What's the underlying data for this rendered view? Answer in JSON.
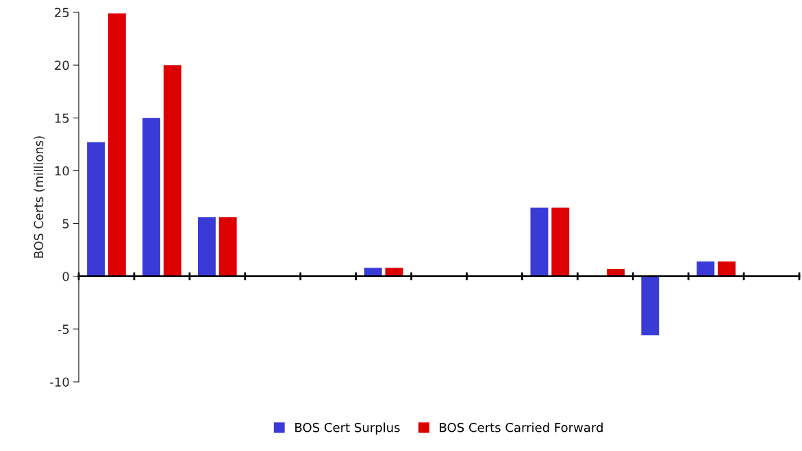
{
  "chart_data": {
    "type": "bar",
    "ylabel": "BOS Certs (millions)",
    "categories": [
      null,
      null,
      null,
      null,
      null,
      null,
      null,
      null,
      null,
      null,
      null,
      null,
      null
    ],
    "series": [
      {
        "name": "BOS Cert Surplus",
        "color": "#3a3ad6",
        "values": [
          12.7,
          15.0,
          5.6,
          null,
          null,
          0.8,
          null,
          null,
          6.5,
          null,
          -5.6,
          1.4,
          null
        ]
      },
      {
        "name": "BOS Certs Carried Forward",
        "color": "#dd0000",
        "values": [
          24.9,
          20.0,
          5.6,
          null,
          null,
          0.8,
          null,
          null,
          6.5,
          0.7,
          null,
          1.4,
          null
        ]
      }
    ],
    "ylim": [
      -10,
      25
    ],
    "yticks": [
      -10,
      -5,
      0,
      5,
      10,
      15,
      20,
      25
    ],
    "legend": "bottom"
  }
}
